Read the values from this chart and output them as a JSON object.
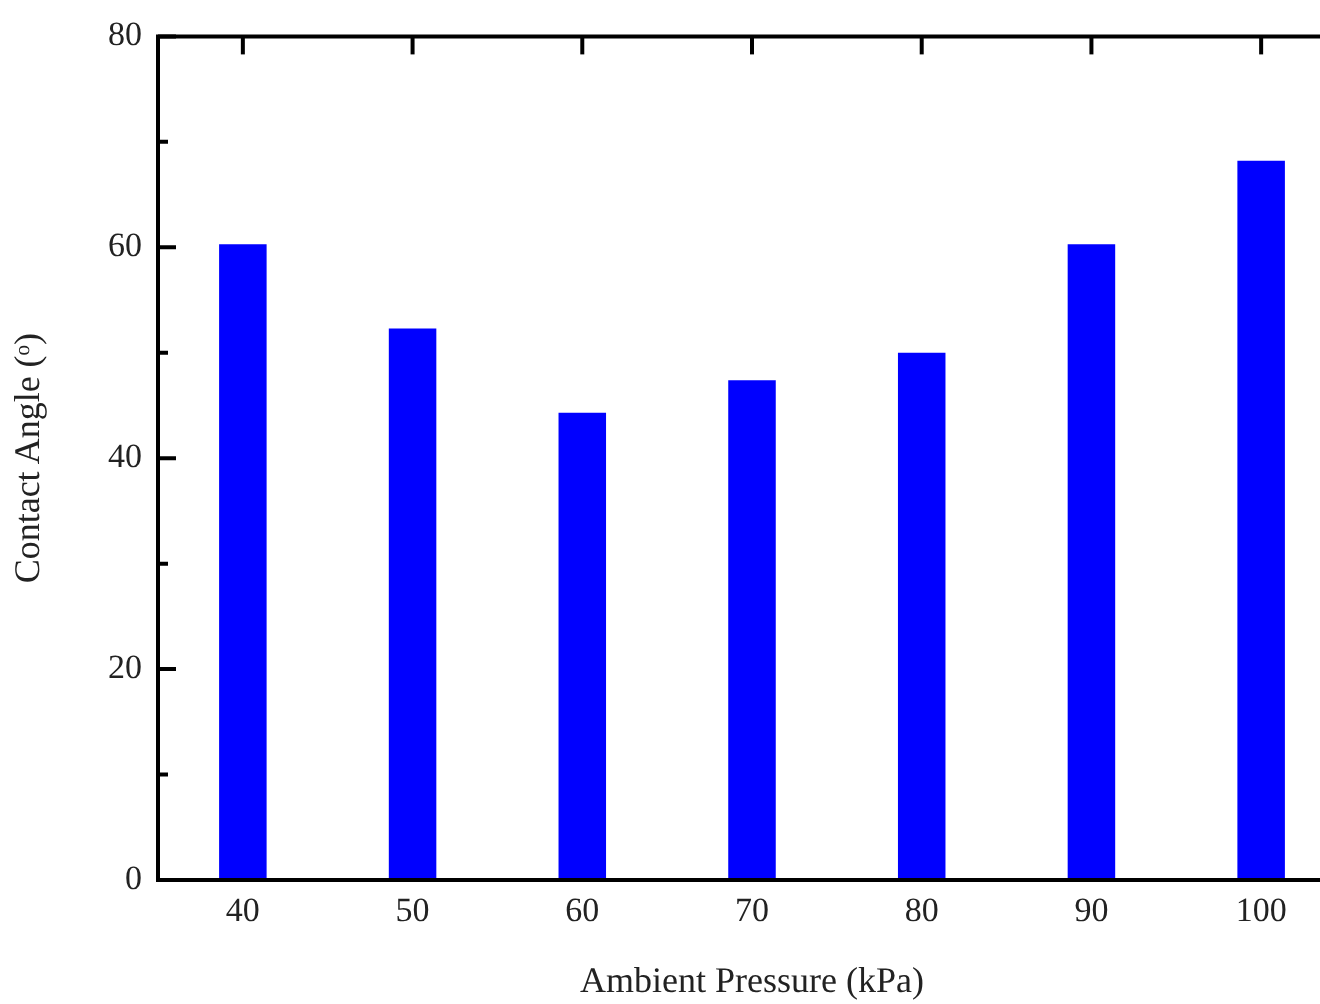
{
  "chart_data": {
    "type": "bar",
    "xlabel": "Ambient Pressure (kPa)",
    "ylabel": "Contact Angle (ᵒ)",
    "categories": [
      "40",
      "50",
      "60",
      "70",
      "80",
      "90",
      "100"
    ],
    "values": [
      60.3,
      52.3,
      44.3,
      47.4,
      50.0,
      60.3,
      68.2
    ],
    "color": "#0000ff",
    "ylim": [
      0,
      80
    ],
    "yticks": [
      0,
      {
        "value": 10,
        "label": null
      },
      20,
      {
        "value": 30,
        "label": null
      },
      40,
      {
        "value": 50,
        "label": null
      },
      60,
      {
        "value": 70,
        "label": null
      },
      80
    ],
    "grid": false,
    "legend": false
  }
}
